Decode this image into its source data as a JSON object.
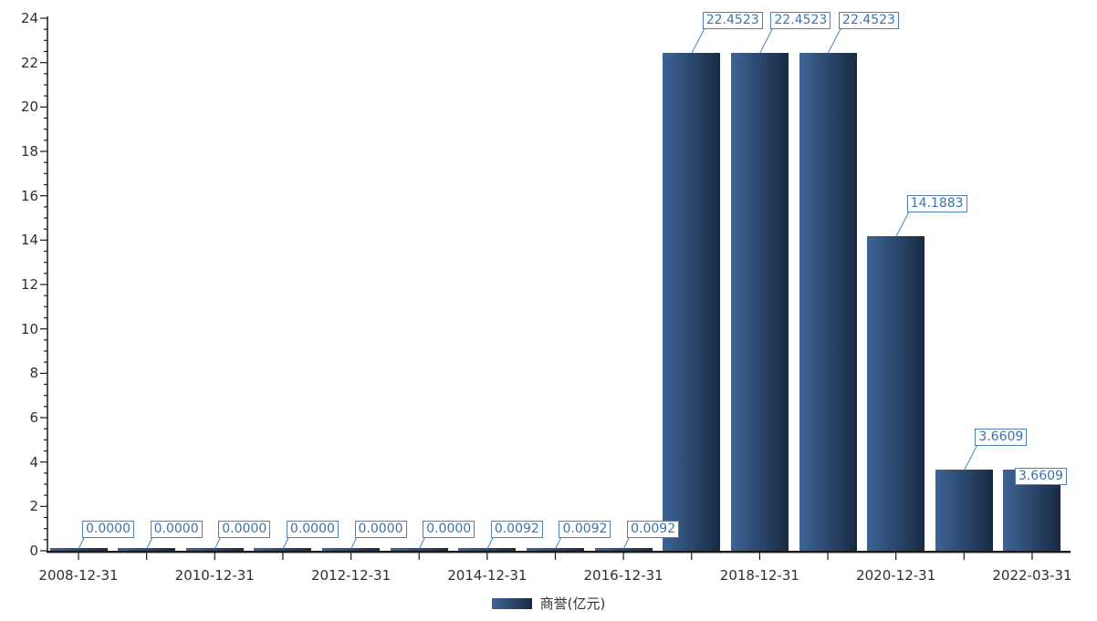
{
  "legend": {
    "label": "商誉(亿元)"
  },
  "colors": {
    "background": "#ffffff",
    "bar_start": "#3d6496",
    "bar_end": "#192a42",
    "axis": "#1a1a1a",
    "label": "#303030",
    "callout_border": "#4d82b8",
    "callout_text": "#3c73ad",
    "leader": "#4d82b8",
    "legend_text": "#333333"
  },
  "chart_data": {
    "type": "bar",
    "title": "",
    "xlabel": "",
    "ylabel": "",
    "series": [
      {
        "name": "商誉(亿元)",
        "values": [
          0.0,
          0.0,
          0.0,
          0.0,
          0.0,
          0.0,
          0.0092,
          0.0092,
          0.0092,
          22.4523,
          22.4523,
          22.4523,
          14.1883,
          3.6609,
          3.6609
        ],
        "value_labels": [
          "0.0000",
          "0.0000",
          "0.0000",
          "0.0000",
          "0.0000",
          "0.0000",
          "0.0092",
          "0.0092",
          "0.0092",
          "22.4523",
          "22.4523",
          "22.4523",
          "14.1883",
          "3.6609",
          "3.6609"
        ]
      }
    ],
    "n_bars": 15,
    "x_tick_labels": [
      "2008-12-31",
      "2010-12-31",
      "2012-12-31",
      "2014-12-31",
      "2016-12-31",
      "2018-12-31",
      "2020-12-31",
      "2022-03-31"
    ],
    "x_label_bar_indexes": [
      0,
      2,
      4,
      6,
      8,
      10,
      12,
      14
    ],
    "y_ticks": [
      0,
      2,
      4,
      6,
      8,
      10,
      12,
      14,
      16,
      18,
      20,
      22,
      24
    ],
    "y_minor_step": 0.5,
    "ylim": [
      0,
      24
    ],
    "grid": false,
    "legend_position": "bottom"
  }
}
